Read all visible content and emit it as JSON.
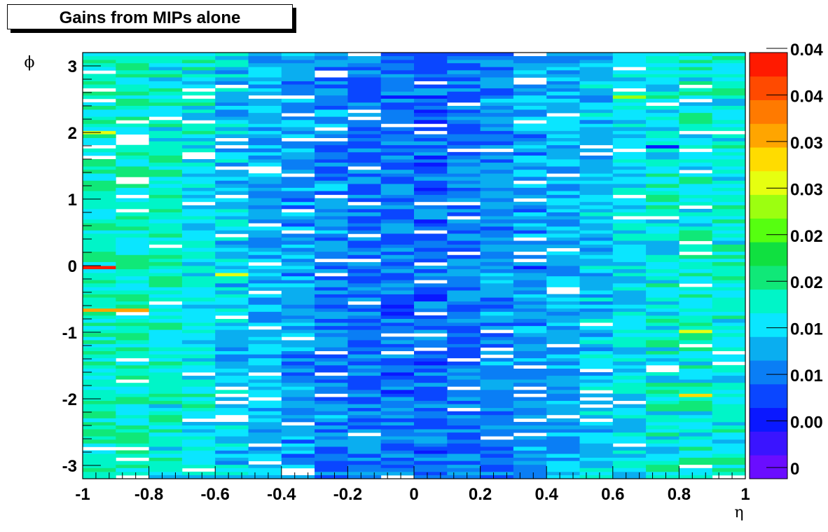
{
  "title": "Gains from MIPs alone",
  "chart_data": {
    "type": "heatmap",
    "title": "Gains from MIPs alone",
    "xlabel": "η",
    "ylabel": "ϕ",
    "xlim": [
      -1,
      1
    ],
    "ylim": [
      -3.2,
      3.2
    ],
    "x_ticks": [
      "-1",
      "-0.8",
      "-0.6",
      "-0.4",
      "-0.2",
      "0",
      "0.2",
      "0.4",
      "0.6",
      "0.8",
      "1"
    ],
    "y_ticks": [
      "-3",
      "-2",
      "-1",
      "0",
      "1",
      "2",
      "3"
    ],
    "colorbar_labels": [
      "0",
      "0.00",
      "0.01",
      "0.01",
      "0.02",
      "0.02",
      "0.03",
      "0.03",
      "0.04",
      "0.04"
    ],
    "colorbar_range": [
      0,
      0.045
    ],
    "eta_bins": 20,
    "phi_bins": 60,
    "gain_profile_vs_eta": {
      "eta": [
        -0.95,
        -0.85,
        -0.75,
        -0.65,
        -0.55,
        -0.45,
        -0.35,
        -0.25,
        -0.15,
        -0.05,
        0.05,
        0.15,
        0.25,
        0.35,
        0.45,
        0.55,
        0.65,
        0.75,
        0.85,
        0.95
      ],
      "typical_gain": [
        0.019,
        0.019,
        0.018,
        0.017,
        0.015,
        0.014,
        0.013,
        0.012,
        0.011,
        0.0105,
        0.0105,
        0.011,
        0.012,
        0.013,
        0.014,
        0.015,
        0.016,
        0.017,
        0.018,
        0.018
      ]
    },
    "notable_cells": [
      {
        "eta": -0.95,
        "phi": -0.05,
        "gain": 0.043
      },
      {
        "eta": -0.95,
        "phi": 1.95,
        "gain": 0.031
      },
      {
        "eta": -0.85,
        "phi": -0.7,
        "gain": 0.036
      },
      {
        "eta": -0.95,
        "phi": -0.7,
        "gain": 0.036
      },
      {
        "eta": -0.55,
        "phi": -0.15,
        "gain": 0.031
      },
      {
        "eta": 0.85,
        "phi": -1.95,
        "gain": 0.034
      },
      {
        "eta": 0.05,
        "phi": 2.5,
        "gain": 0.006
      },
      {
        "eta": 0.35,
        "phi": -0.05,
        "gain": 0.005
      },
      {
        "eta": 0.75,
        "phi": 1.75,
        "gain": 0.006
      },
      {
        "eta": 0.65,
        "phi": 2.55,
        "gain": 0.029
      },
      {
        "eta": 0.85,
        "phi": -1.0,
        "gain": 0.031
      }
    ],
    "empty_fraction": 0.06,
    "palette": [
      "#6a0dff",
      "#3a14ff",
      "#0a18ff",
      "#0a46ff",
      "#0a7ef5",
      "#0aaef0",
      "#0ae6ff",
      "#00f5c8",
      "#10e878",
      "#10e040",
      "#56ff10",
      "#9cff10",
      "#e6ff10",
      "#ffdc00",
      "#ffa500",
      "#ff7a00",
      "#ff4a00",
      "#ff1a00"
    ]
  }
}
